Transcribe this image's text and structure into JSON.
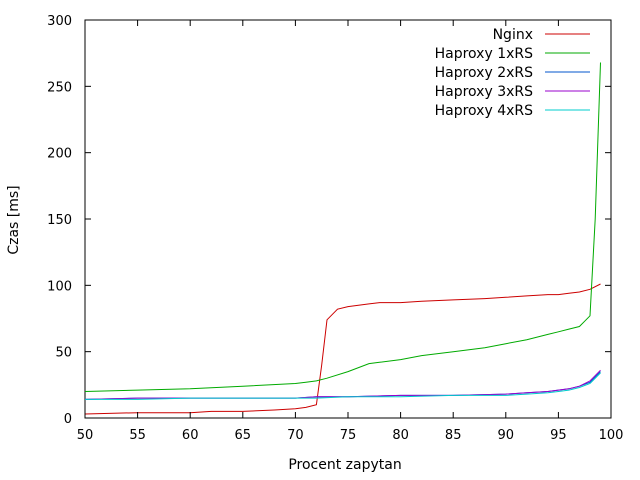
{
  "chart_data": {
    "type": "line",
    "xlabel": "Procent zapytan",
    "ylabel": "Czas [ms]",
    "xlim": [
      50,
      100
    ],
    "ylim": [
      0,
      300
    ],
    "xticks": [
      50,
      55,
      60,
      65,
      70,
      75,
      80,
      85,
      90,
      95,
      100
    ],
    "yticks": [
      0,
      50,
      100,
      150,
      200,
      250,
      300
    ],
    "grid": false,
    "legend_position": "top-right",
    "series": [
      {
        "name": "Nginx",
        "color": "#cc0000",
        "x": [
          50,
          55,
          60,
          62,
          65,
          68,
          70,
          71,
          72,
          72.5,
          73,
          74,
          75,
          77,
          78,
          80,
          82,
          85,
          88,
          90,
          92,
          94,
          95,
          96,
          97,
          98,
          99
        ],
        "y": [
          3,
          4,
          4,
          5,
          5,
          6,
          7,
          8,
          10,
          40,
          74,
          82,
          84,
          86,
          87,
          87,
          88,
          89,
          90,
          91,
          92,
          93,
          93,
          94,
          95,
          97,
          101
        ]
      },
      {
        "name": "Haproxy 1xRS",
        "color": "#00aa00",
        "x": [
          50,
          55,
          60,
          65,
          70,
          71,
          72,
          73,
          75,
          77,
          78,
          80,
          82,
          85,
          88,
          90,
          92,
          94,
          95,
          96,
          97,
          97.5,
          98,
          98.5,
          99
        ],
        "y": [
          20,
          21,
          22,
          24,
          26,
          27,
          28,
          30,
          35,
          41,
          42,
          44,
          47,
          50,
          53,
          56,
          59,
          63,
          65,
          67,
          69,
          73,
          77,
          150,
          268
        ]
      },
      {
        "name": "Haproxy 2xRS",
        "color": "#0055cc",
        "x": [
          50,
          55,
          60,
          65,
          70,
          72,
          75,
          80,
          85,
          90,
          92,
          94,
          95,
          96,
          97,
          98,
          99
        ],
        "y": [
          14,
          15,
          15,
          15,
          15,
          16,
          16,
          17,
          17,
          18,
          19,
          20,
          21,
          22,
          24,
          27,
          35
        ]
      },
      {
        "name": "Haproxy 3xRS",
        "color": "#9900cc",
        "x": [
          50,
          55,
          60,
          65,
          70,
          72,
          75,
          80,
          85,
          90,
          92,
          94,
          95,
          96,
          97,
          98,
          99
        ],
        "y": [
          14,
          15,
          15,
          15,
          15,
          16,
          16,
          17,
          17,
          18,
          19,
          20,
          21,
          22,
          24,
          28,
          36
        ]
      },
      {
        "name": "Haproxy 4xRS",
        "color": "#00cccc",
        "x": [
          50,
          55,
          60,
          65,
          70,
          72,
          75,
          80,
          85,
          90,
          92,
          94,
          95,
          96,
          97,
          98,
          99
        ],
        "y": [
          14,
          14,
          15,
          15,
          15,
          15,
          16,
          16,
          17,
          17,
          18,
          19,
          20,
          21,
          23,
          26,
          34
        ]
      }
    ]
  }
}
